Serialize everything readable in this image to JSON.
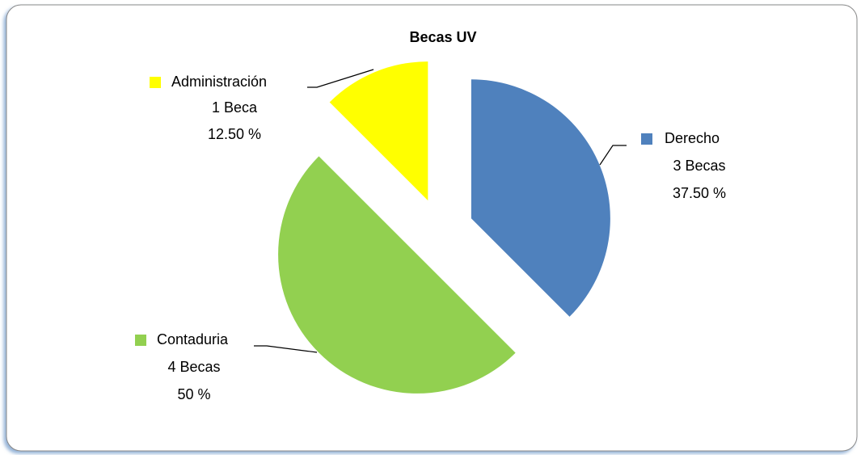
{
  "chart_data": {
    "type": "pie",
    "title": "Becas UV",
    "categories": [
      "Derecho",
      "Contaduria",
      "Administración"
    ],
    "values": [
      3,
      4,
      1
    ],
    "value_labels": [
      "3 Becas",
      "4 Becas",
      "1 Beca"
    ],
    "percentages": [
      37.5,
      50,
      12.5
    ],
    "percent_labels": [
      "37.50 %",
      "50 %",
      "12.50 %"
    ],
    "colors": [
      "#4f81bd",
      "#92d050",
      "#ffff00"
    ],
    "exploded": true
  }
}
